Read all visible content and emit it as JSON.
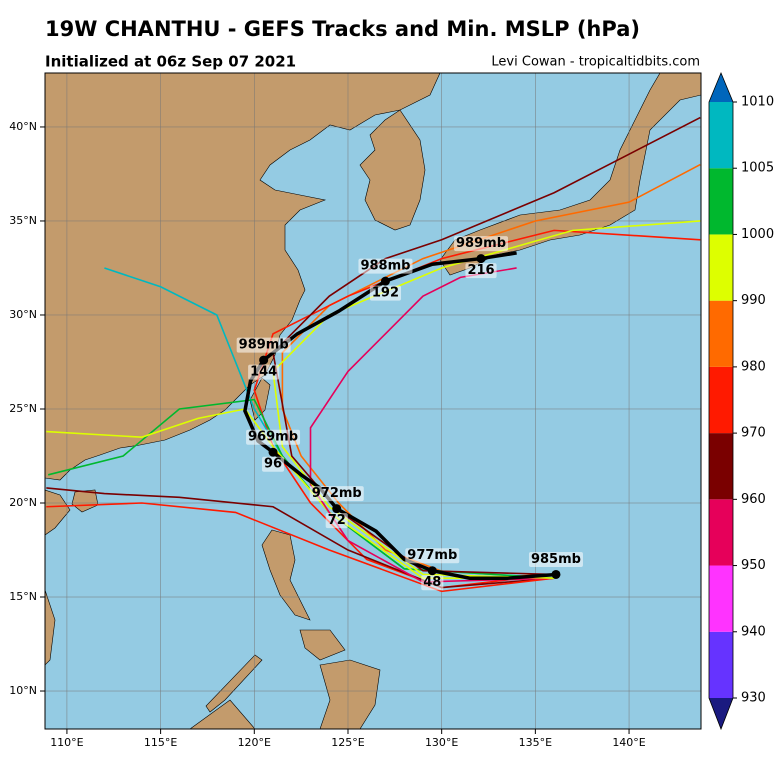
{
  "chart_data": {
    "type": "track-map",
    "title": "19W CHANTHU - GEFS Tracks and Min. MSLP (hPa)",
    "subtitle": "Initialized at 06z Sep 07 2021",
    "credit": "Levi Cowan - tropicaltidbits.com",
    "xlim": [
      108.83,
      143.84
    ],
    "ylim": [
      7.98,
      42.87
    ],
    "xticks": [
      {
        "value": 110,
        "label": "110°E"
      },
      {
        "value": 115,
        "label": "115°E"
      },
      {
        "value": 120,
        "label": "120°E"
      },
      {
        "value": 125,
        "label": "125°E"
      },
      {
        "value": 130,
        "label": "130°E"
      },
      {
        "value": 135,
        "label": "135°E"
      },
      {
        "value": 140,
        "label": "140°E"
      }
    ],
    "yticks": [
      {
        "value": 10,
        "label": "10°N"
      },
      {
        "value": 15,
        "label": "15°N"
      },
      {
        "value": 20,
        "label": "20°N"
      },
      {
        "value": 25,
        "label": "25°N"
      },
      {
        "value": 30,
        "label": "30°N"
      },
      {
        "value": 35,
        "label": "35°N"
      },
      {
        "value": 40,
        "label": "40°N"
      }
    ],
    "grid": true,
    "members": [
      {
        "color": "#ff6a00",
        "lon": [
          136,
          131,
          127,
          124.5,
          122.5,
          121.5,
          121.5,
          124,
          129,
          135,
          140,
          143.8
        ],
        "lat": [
          16.2,
          16,
          17.5,
          20,
          22.5,
          25,
          28,
          30.5,
          33,
          35,
          36,
          38
        ]
      },
      {
        "color": "#ff1a00",
        "lon": [
          136,
          130,
          126,
          123,
          121,
          120,
          121,
          125,
          130,
          136,
          143.8
        ],
        "lat": [
          16.2,
          15.5,
          17,
          20,
          23,
          26,
          29,
          31,
          33,
          34.5,
          34
        ]
      },
      {
        "color": "#7a0000",
        "lon": [
          136,
          130,
          125,
          121,
          116,
          112,
          108.9
        ],
        "lat": [
          16,
          15.5,
          17.5,
          19.8,
          20.3,
          20.5,
          20.8
        ]
      },
      {
        "color": "#ff1a00",
        "lon": [
          136,
          130,
          124,
          119,
          114,
          108.9
        ],
        "lat": [
          16,
          15.3,
          17.5,
          19.5,
          20,
          19.8
        ]
      },
      {
        "color": "#00b8c0",
        "lon": [
          136,
          128,
          124,
          121.5,
          120,
          119,
          118,
          115,
          112
        ],
        "lat": [
          16,
          16.5,
          19.5,
          22.5,
          25,
          27.5,
          30,
          31.5,
          32.5
        ]
      },
      {
        "color": "#00b82e",
        "lon": [
          136,
          128,
          124,
          121.5,
          120,
          116,
          113,
          109
        ],
        "lat": [
          16,
          16.5,
          19.5,
          22.5,
          25.5,
          25,
          22.5,
          21.5
        ]
      },
      {
        "color": "#ddff00",
        "lon": [
          136,
          129,
          124,
          121,
          119.5,
          117,
          114,
          108.9
        ],
        "lat": [
          16,
          16,
          19.5,
          23,
          25,
          24.5,
          23.5,
          23.8
        ]
      },
      {
        "color": "#e6005a",
        "lon": [
          136,
          129,
          125,
          123,
          123,
          125,
          127,
          129,
          131,
          134
        ],
        "lat": [
          16,
          15.8,
          18,
          21,
          24,
          27,
          29,
          31,
          32,
          32.5
        ]
      },
      {
        "color": "#ddff00",
        "lon": [
          136,
          129,
          124,
          121.5,
          121,
          124,
          130,
          137,
          143.8
        ],
        "lat": [
          16,
          16.2,
          19.8,
          23,
          27,
          30,
          32.5,
          34.5,
          35
        ]
      },
      {
        "color": "#7a0000",
        "lon": [
          136,
          129,
          124.5,
          122,
          121,
          124,
          127,
          130,
          136,
          143.8
        ],
        "lat": [
          16.2,
          16.4,
          19.6,
          22.5,
          28,
          31,
          33,
          34,
          36.5,
          40.5
        ]
      }
    ],
    "mean_track": {
      "lon": [
        136.1,
        133.5,
        131.5,
        129.5,
        128,
        126.5,
        124.4,
        123.5,
        122.5,
        121,
        120.2,
        119.5,
        119.8,
        120.5,
        122.3,
        124.5,
        127,
        129.5,
        132.1,
        134
      ],
      "lat": [
        16.2,
        16,
        16,
        16.4,
        17,
        18.5,
        19.7,
        20.8,
        21.5,
        22.7,
        23.3,
        24.9,
        26.5,
        27.6,
        29,
        30.2,
        31.8,
        32.7,
        33,
        33.3
      ]
    },
    "mean_labels": [
      {
        "lon": 136.1,
        "lat": 16.2,
        "mslp": "985mb"
      },
      {
        "lon": 129.5,
        "lat": 16.4,
        "mslp": "977mb",
        "hour": 48
      },
      {
        "lon": 124.4,
        "lat": 19.7,
        "mslp": "972mb",
        "hour": 72
      },
      {
        "lon": 121,
        "lat": 22.7,
        "mslp": "969mb",
        "hour": 96
      },
      {
        "lon": 120.5,
        "lat": 27.6,
        "mslp": "989mb",
        "hour": 144
      },
      {
        "lon": 127,
        "lat": 31.8,
        "mslp": "988mb",
        "hour": 192
      },
      {
        "lon": 132.1,
        "lat": 33,
        "mslp": "989mb",
        "hour": 216
      }
    ],
    "colorbar": {
      "levels": [
        930,
        940,
        950,
        960,
        970,
        980,
        990,
        1000,
        1005,
        1010
      ],
      "colors": [
        "#6633ff",
        "#ff33ff",
        "#e6005a",
        "#7a0000",
        "#ff1a00",
        "#ff6a00",
        "#ddff00",
        "#00b82e",
        "#00b8c0"
      ],
      "under": "#1a1a80",
      "over": "#0066bb"
    }
  }
}
